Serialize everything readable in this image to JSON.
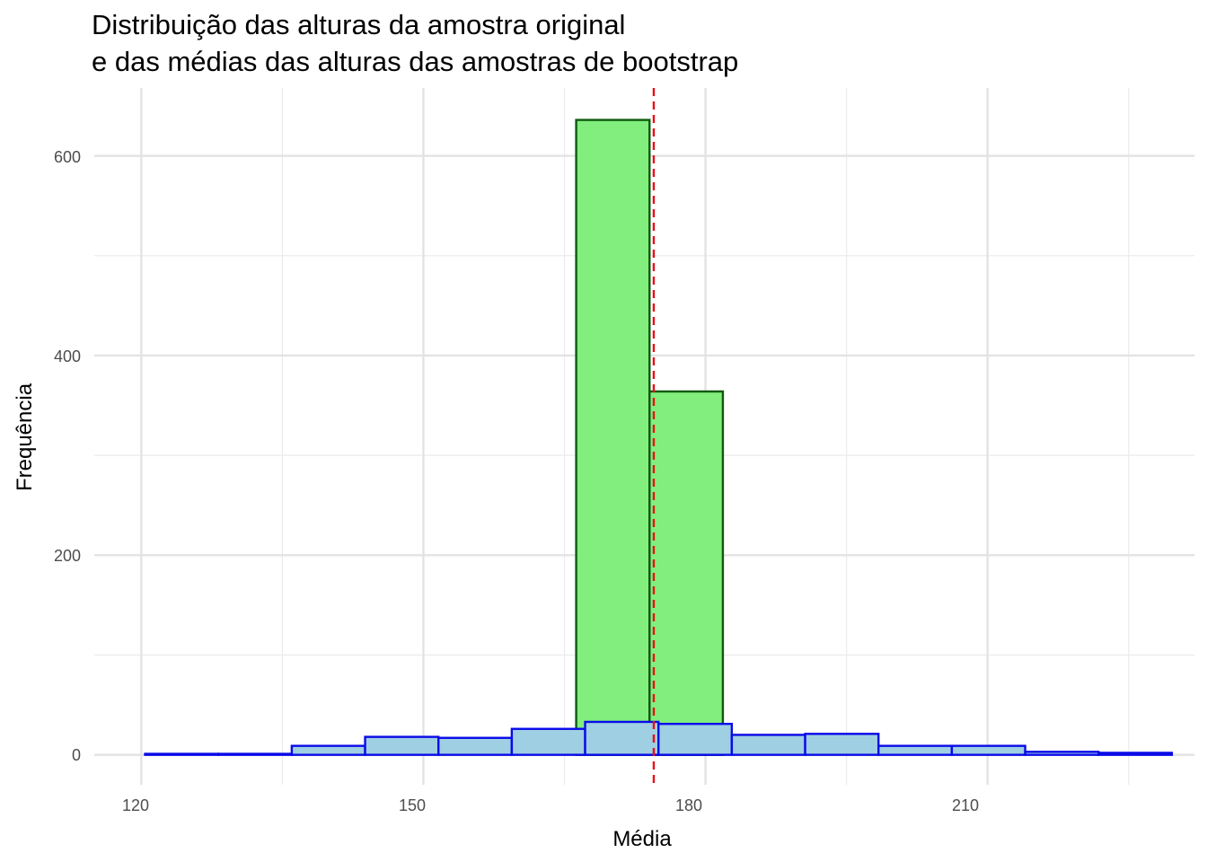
{
  "chart_data": {
    "type": "bar",
    "title_lines": [
      "Distribuição das alturas da amostra original",
      "e das médias das alturas das amostras de bootstrap"
    ],
    "xlabel": "Média",
    "ylabel": "Frequência",
    "xlim": [
      115,
      232
    ],
    "ylim": [
      -30,
      668
    ],
    "x_ticks": [
      120,
      150,
      180,
      210
    ],
    "x_tick_labels": [
      "120",
      "150",
      "180",
      "210"
    ],
    "y_ticks": [
      0,
      200,
      400,
      600
    ],
    "y_tick_labels": [
      "0",
      "200",
      "400",
      "600"
    ],
    "grid": true,
    "legend": "none",
    "reference_line": {
      "x": 174.5,
      "color": "#e8101a",
      "style": "dashed"
    },
    "series": [
      {
        "fill": "#82ee7e",
        "stroke": "#0c5a0c",
        "bins": [
          {
            "x0": 166.25,
            "x1": 174.05,
            "count": 636
          },
          {
            "x0": 174.05,
            "x1": 181.85,
            "count": 364
          }
        ]
      },
      {
        "fill": "#9ecfe2",
        "stroke": "#0a0ae8",
        "bins": [
          {
            "x0": 120.4,
            "x1": 128.2,
            "count": 1
          },
          {
            "x0": 128.2,
            "x1": 136.0,
            "count": 1
          },
          {
            "x0": 136.0,
            "x1": 143.8,
            "count": 9
          },
          {
            "x0": 143.8,
            "x1": 151.6,
            "count": 18
          },
          {
            "x0": 151.6,
            "x1": 159.4,
            "count": 17
          },
          {
            "x0": 159.4,
            "x1": 167.2,
            "count": 26
          },
          {
            "x0": 167.2,
            "x1": 175.0,
            "count": 33
          },
          {
            "x0": 175.0,
            "x1": 182.8,
            "count": 31
          },
          {
            "x0": 182.8,
            "x1": 190.6,
            "count": 20
          },
          {
            "x0": 190.6,
            "x1": 198.4,
            "count": 21
          },
          {
            "x0": 198.4,
            "x1": 206.2,
            "count": 9
          },
          {
            "x0": 206.2,
            "x1": 214.0,
            "count": 9
          },
          {
            "x0": 214.0,
            "x1": 221.8,
            "count": 3
          },
          {
            "x0": 221.8,
            "x1": 229.6,
            "count": 2
          }
        ]
      }
    ]
  }
}
